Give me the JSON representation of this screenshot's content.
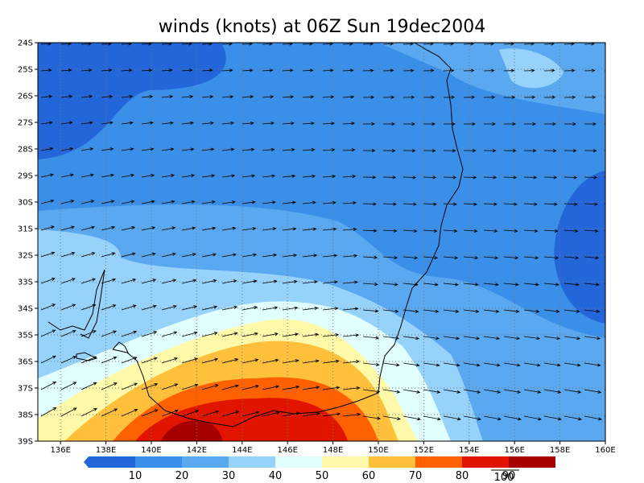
{
  "title": "winds (knots) at 06Z Sun 19dec2004",
  "lat_labels": [
    "24S",
    "25S",
    "26S",
    "27S",
    "28S",
    "29S",
    "30S",
    "31S",
    "32S",
    "33S",
    "34S",
    "35S",
    "36S",
    "37S",
    "38S",
    "39S"
  ],
  "lon_labels": [
    "136E",
    "138E",
    "140E",
    "142E",
    "144E",
    "146E",
    "148E",
    "150E",
    "152E",
    "154E",
    "156E",
    "158E",
    "160E"
  ],
  "colorbar": {
    "colors": [
      "#2266d9",
      "#3a8fe8",
      "#5aa8f0",
      "#96d2fa",
      "#e1ffff",
      "#fffaaa",
      "#ffc03c",
      "#ff6000",
      "#e11400",
      "#a50000"
    ],
    "labels": [
      10,
      20,
      30,
      40,
      50,
      60,
      70,
      80,
      90
    ]
  },
  "reference_vector_label": 100
}
